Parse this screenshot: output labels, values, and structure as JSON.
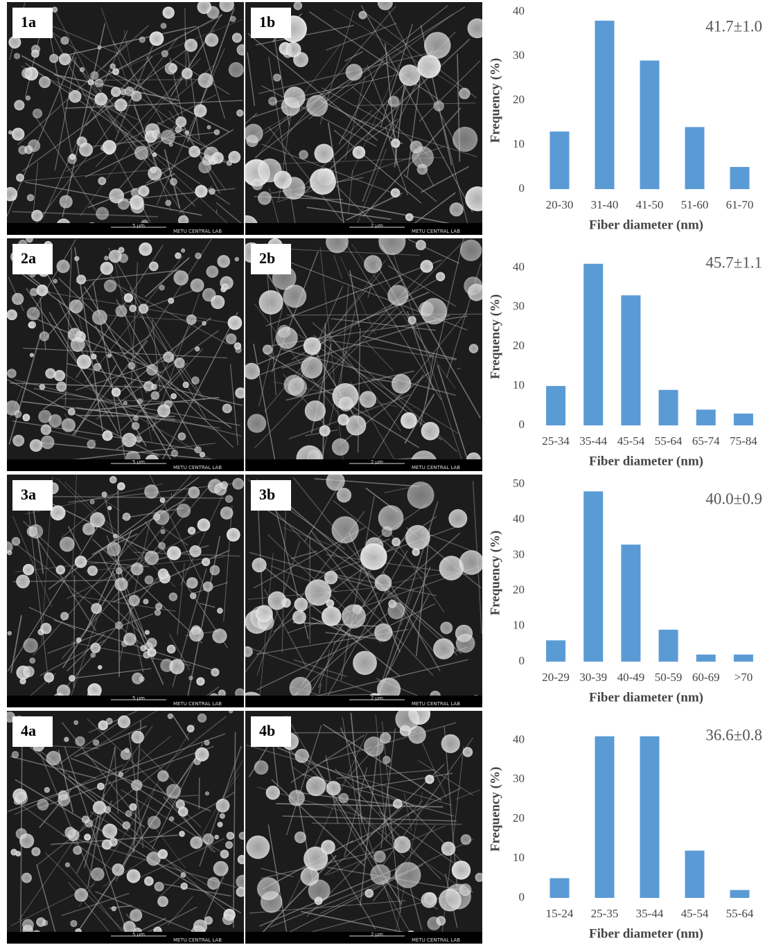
{
  "chart_data": [
    {
      "type": "bar",
      "annotation": "41.7±1.0",
      "x_label": "Fiber diameter (nm)",
      "y_label": "Frequency (%)",
      "categories": [
        "20-30",
        "31-40",
        "41-50",
        "51-60",
        "61-70"
      ],
      "values": [
        13,
        38,
        29,
        14,
        5
      ],
      "color": "#5b9bd5",
      "ylim": [
        0,
        40
      ],
      "yticks": [
        0,
        10,
        20,
        30,
        40
      ]
    },
    {
      "type": "bar",
      "annotation": "45.7±1.1",
      "x_label": "Fiber diameter (nm)",
      "y_label": "Frequency (%)",
      "categories": [
        "25-34",
        "35-44",
        "45-54",
        "55-64",
        "65-74",
        "75-84"
      ],
      "values": [
        10,
        41,
        33,
        9,
        4,
        3
      ],
      "color": "#5b9bd5",
      "ylim": [
        0,
        45
      ],
      "yticks": [
        0,
        10,
        20,
        30,
        40
      ]
    },
    {
      "type": "bar",
      "annotation": "40.0±0.9",
      "x_label": "Fiber diameter (nm)",
      "y_label": "Frequency (%)",
      "categories": [
        "20-29",
        "30-39",
        "40-49",
        "50-59",
        "60-69",
        ">70"
      ],
      "values": [
        6,
        48,
        33,
        9,
        2,
        2
      ],
      "color": "#5b9bd5",
      "ylim": [
        0,
        50
      ],
      "yticks": [
        0,
        10,
        20,
        30,
        40,
        50
      ]
    },
    {
      "type": "bar",
      "annotation": "36.6±0.8",
      "x_label": "Fiber diameter (nm)",
      "y_label": "Frequency (%)",
      "categories": [
        "15-24",
        "25-35",
        "35-44",
        "45-54",
        "55-64"
      ],
      "values": [
        5,
        41,
        41,
        12,
        2
      ],
      "color": "#5b9bd5",
      "ylim": [
        0,
        45
      ],
      "yticks": [
        0,
        10,
        20,
        30,
        40
      ]
    }
  ],
  "panels": [
    {
      "label": "1a",
      "scale": "5 µm",
      "lab": "METU CENTRAL LAB"
    },
    {
      "label": "1b",
      "scale": "2 µm",
      "lab": "METU CENTRAL LAB"
    },
    {
      "label": "2a",
      "scale": "5 µm",
      "lab": "METU CENTRAL LAB"
    },
    {
      "label": "2b",
      "scale": "2 µm",
      "lab": "METU CENTRAL LAB"
    },
    {
      "label": "3a",
      "scale": "5 µm",
      "lab": "METU CENTRAL LAB"
    },
    {
      "label": "3b",
      "scale": "2 µm",
      "lab": "METU CENTRAL LAB"
    },
    {
      "label": "4a",
      "scale": "5 µm",
      "lab": "METU CENTRAL LAB"
    },
    {
      "label": "4b",
      "scale": "2 µm",
      "lab": "METU CENTRAL LAB"
    }
  ]
}
